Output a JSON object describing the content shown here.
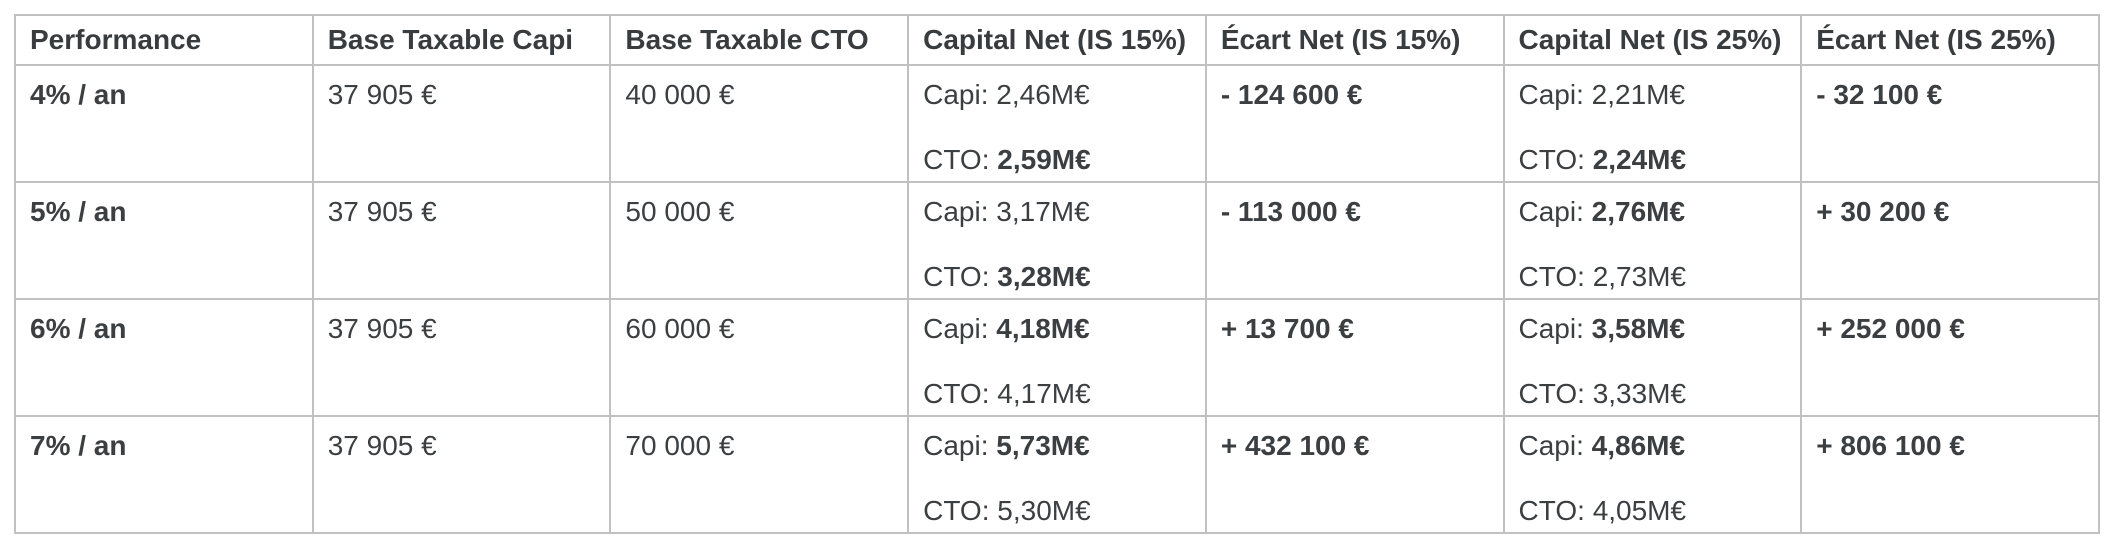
{
  "colors": {
    "text": "#3c3f42",
    "grid_border": "#c1c1c1",
    "background": "#ffffff"
  },
  "table": {
    "headers": [
      "Performance",
      "Base Taxable Capi",
      "Base Taxable CTO",
      "Capital Net (IS 15%)",
      "Écart Net (IS 15%)",
      "Capital Net (IS 25%)",
      "Écart Net (IS 25%)"
    ],
    "rows": [
      {
        "performance": "4% / an",
        "base_taxable_capi": "37 905 €",
        "base_taxable_cto": "40 000 €",
        "capital_net_is15": {
          "capi": {
            "label": "Capi:",
            "value": "2,46M€",
            "bold": false
          },
          "cto": {
            "label": "CTO:",
            "value": "2,59M€",
            "bold": true
          }
        },
        "ecart_net_is15": "- 124 600 €",
        "capital_net_is25": {
          "capi": {
            "label": "Capi:",
            "value": "2,21M€",
            "bold": false
          },
          "cto": {
            "label": "CTO:",
            "value": "2,24M€",
            "bold": true
          }
        },
        "ecart_net_is25": "- 32 100 €"
      },
      {
        "performance": "5% / an",
        "base_taxable_capi": "37 905 €",
        "base_taxable_cto": "50 000 €",
        "capital_net_is15": {
          "capi": {
            "label": "Capi:",
            "value": "3,17M€",
            "bold": false
          },
          "cto": {
            "label": "CTO:",
            "value": "3,28M€",
            "bold": true
          }
        },
        "ecart_net_is15": "- 113 000 €",
        "capital_net_is25": {
          "capi": {
            "label": "Capi:",
            "value": "2,76M€",
            "bold": true
          },
          "cto": {
            "label": "CTO:",
            "value": "2,73M€",
            "bold": false
          }
        },
        "ecart_net_is25": "+ 30 200 €"
      },
      {
        "performance": "6% / an",
        "base_taxable_capi": "37 905 €",
        "base_taxable_cto": "60 000 €",
        "capital_net_is15": {
          "capi": {
            "label": "Capi:",
            "value": "4,18M€",
            "bold": true
          },
          "cto": {
            "label": "CTO:",
            "value": "4,17M€",
            "bold": false
          }
        },
        "ecart_net_is15": "+ 13 700 €",
        "capital_net_is25": {
          "capi": {
            "label": "Capi:",
            "value": "3,58M€",
            "bold": true
          },
          "cto": {
            "label": "CTO:",
            "value": "3,33M€",
            "bold": false
          }
        },
        "ecart_net_is25": "+ 252 000 €"
      },
      {
        "performance": "7% / an",
        "base_taxable_capi": "37 905 €",
        "base_taxable_cto": "70 000 €",
        "capital_net_is15": {
          "capi": {
            "label": "Capi:",
            "value": "5,73M€",
            "bold": true
          },
          "cto": {
            "label": "CTO:",
            "value": "5,30M€",
            "bold": false
          }
        },
        "ecart_net_is15": "+ 432 100 €",
        "capital_net_is25": {
          "capi": {
            "label": "Capi:",
            "value": "4,86M€",
            "bold": true
          },
          "cto": {
            "label": "CTO:",
            "value": "4,05M€",
            "bold": false
          }
        },
        "ecart_net_is25": "+ 806 100 €"
      }
    ]
  }
}
